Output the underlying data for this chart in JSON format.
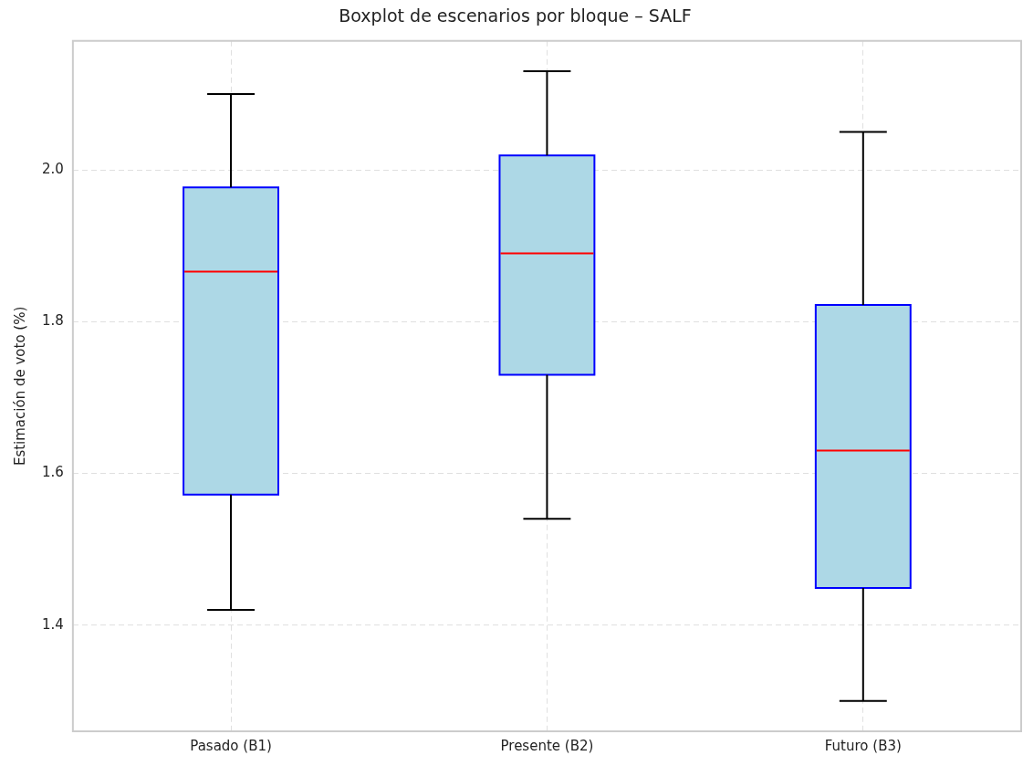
{
  "chart_data": {
    "type": "box",
    "title": "Boxplot de escenarios por bloque – SALF",
    "ylabel": "Estimación de voto (%)",
    "categories": [
      "Pasado (B1)",
      "Presente (B2)",
      "Futuro (B3)"
    ],
    "color": "#add8e6",
    "boxes": [
      {
        "low": 1.42,
        "q1": 1.572,
        "median": 1.866,
        "q3": 1.977,
        "high": 2.1
      },
      {
        "low": 1.54,
        "q1": 1.73,
        "median": 1.89,
        "q3": 2.019,
        "high": 2.13
      },
      {
        "low": 1.3,
        "q1": 1.449,
        "median": 1.63,
        "q3": 1.822,
        "high": 2.05
      }
    ],
    "ylim": [
      1.26,
      2.17
    ],
    "yticks": [
      {
        "value": 1.4,
        "label": "1.4"
      },
      {
        "value": 1.6,
        "label": "1.6"
      },
      {
        "value": 1.8,
        "label": "1.8"
      },
      {
        "value": 2,
        "label": "2.0"
      }
    ],
    "grid": true
  }
}
